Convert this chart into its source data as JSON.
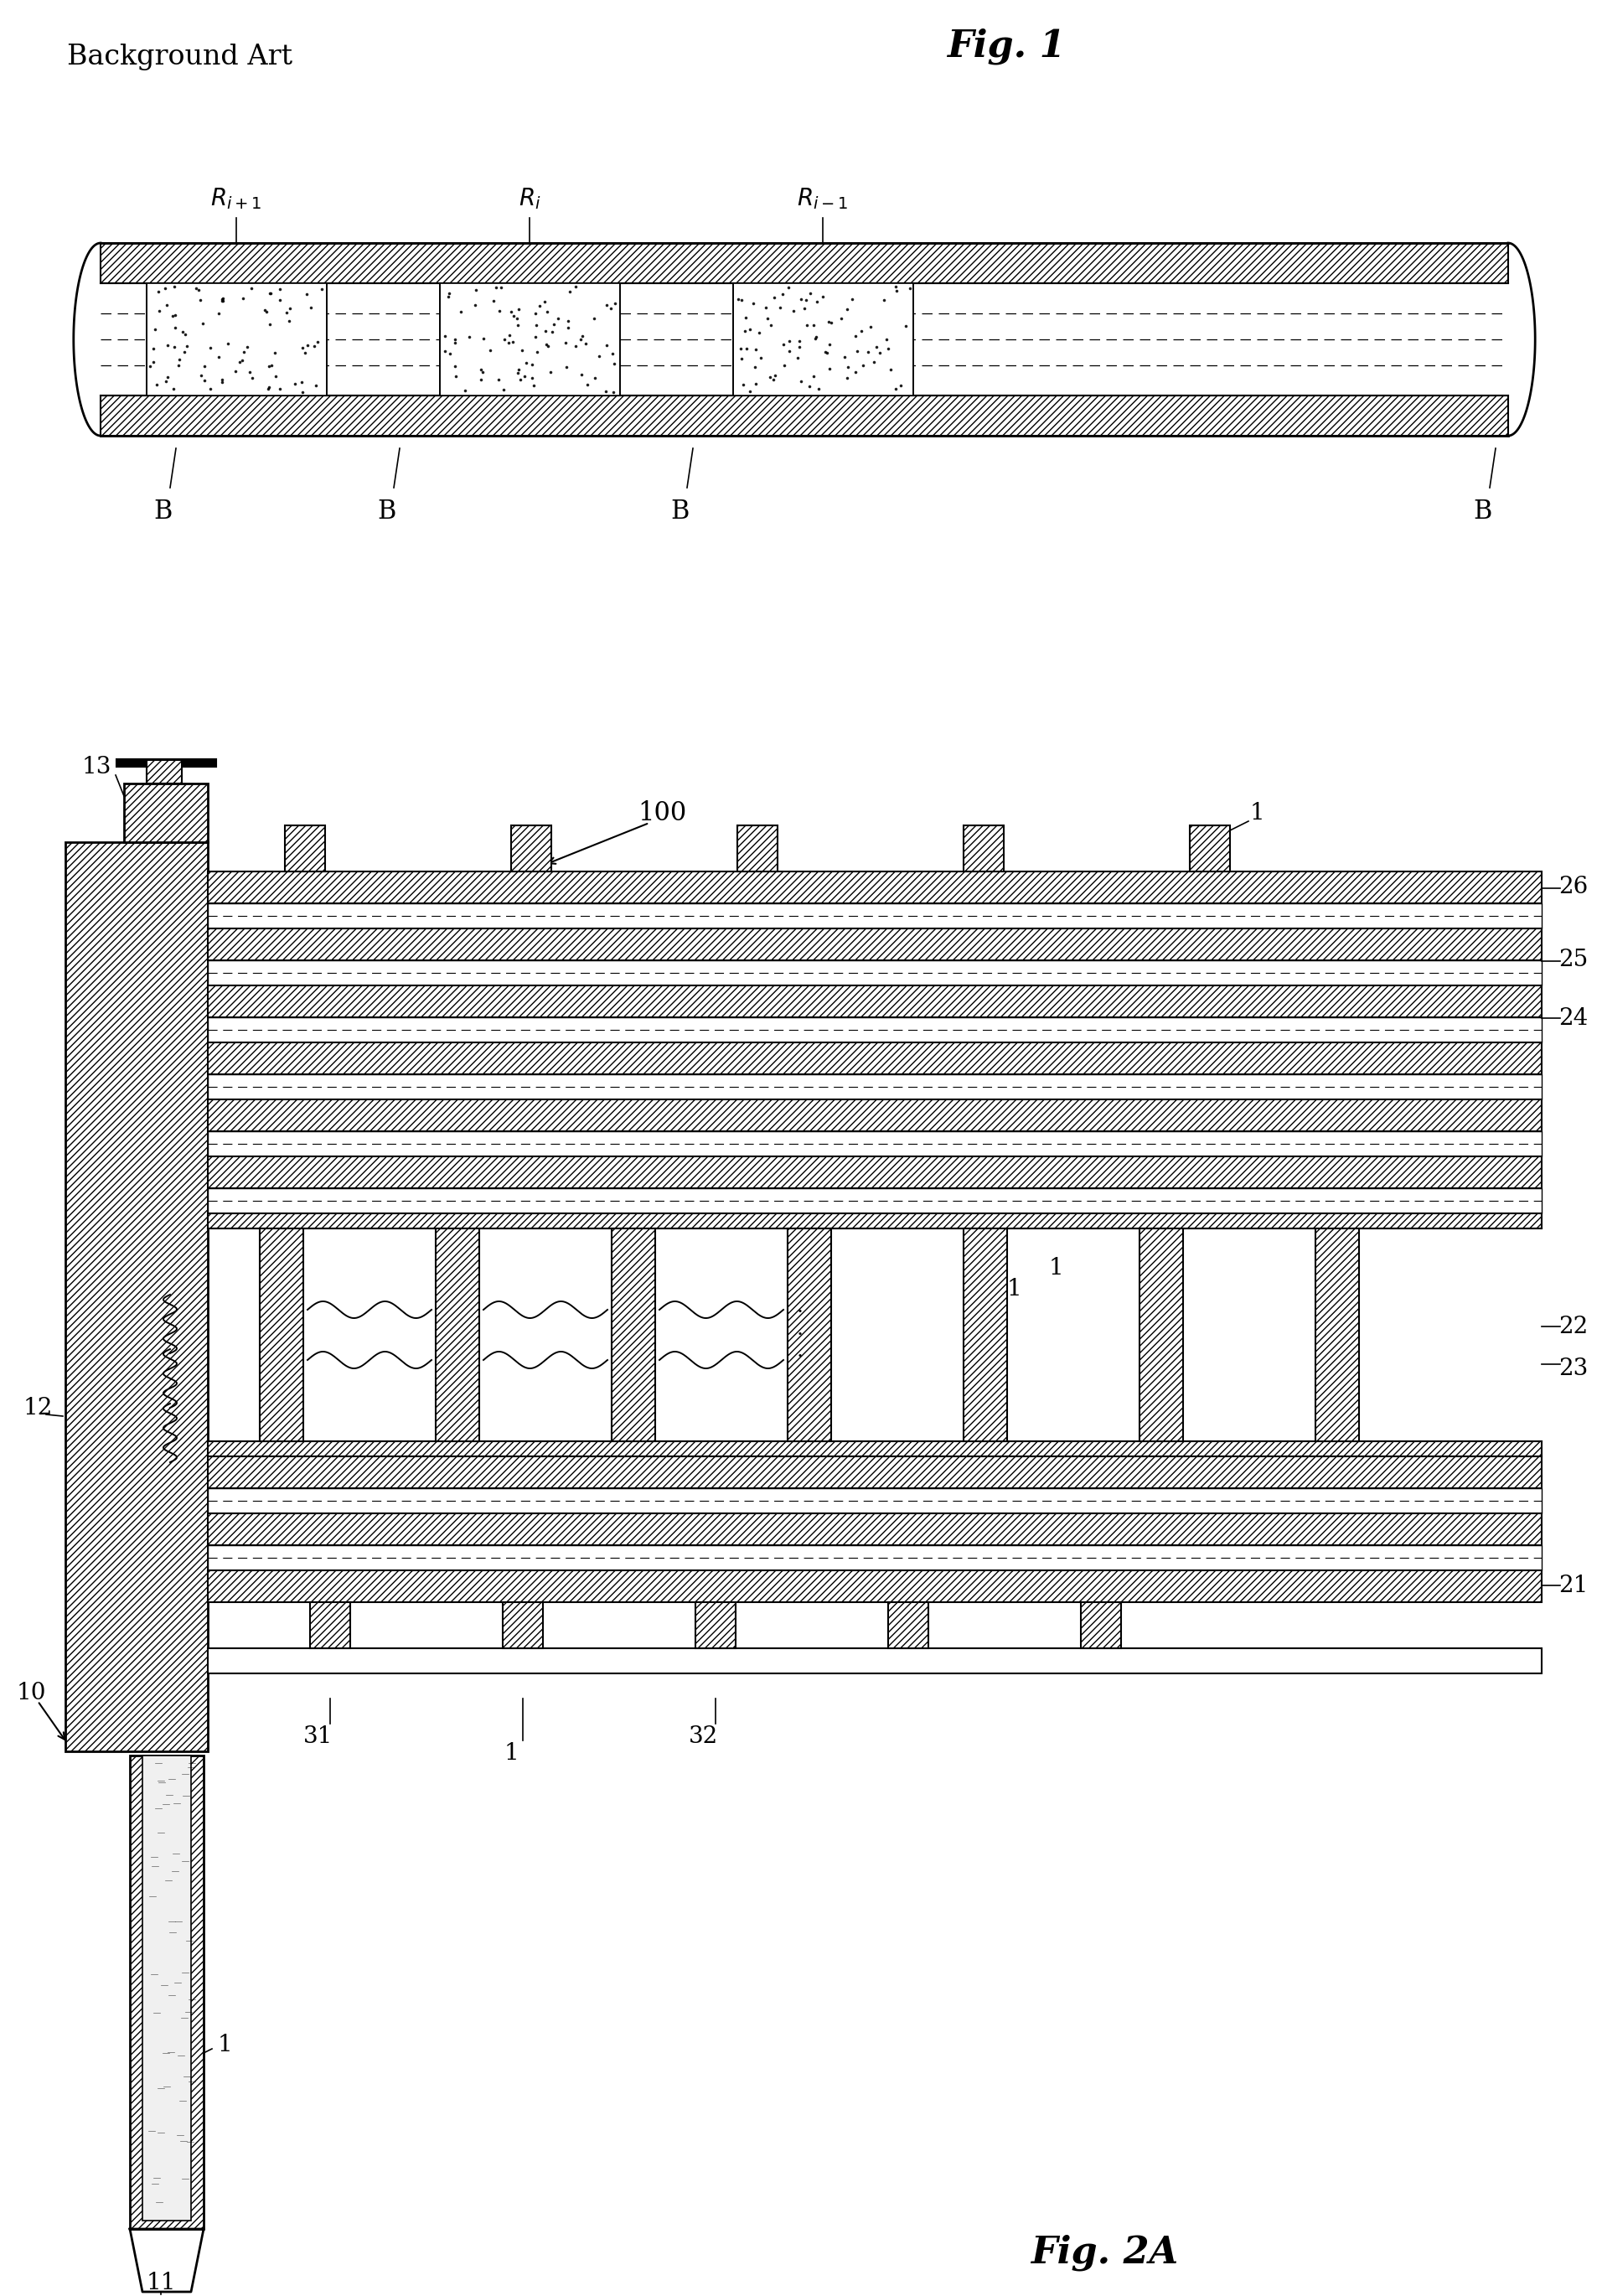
{
  "bg_color": "#ffffff",
  "fig_width": 19.12,
  "fig_height": 27.4,
  "title1": "Background Art",
  "title2": "Fig. 1",
  "title3": "Fig. 2A",
  "label_fontsize": 20,
  "title_fontsize": 30
}
